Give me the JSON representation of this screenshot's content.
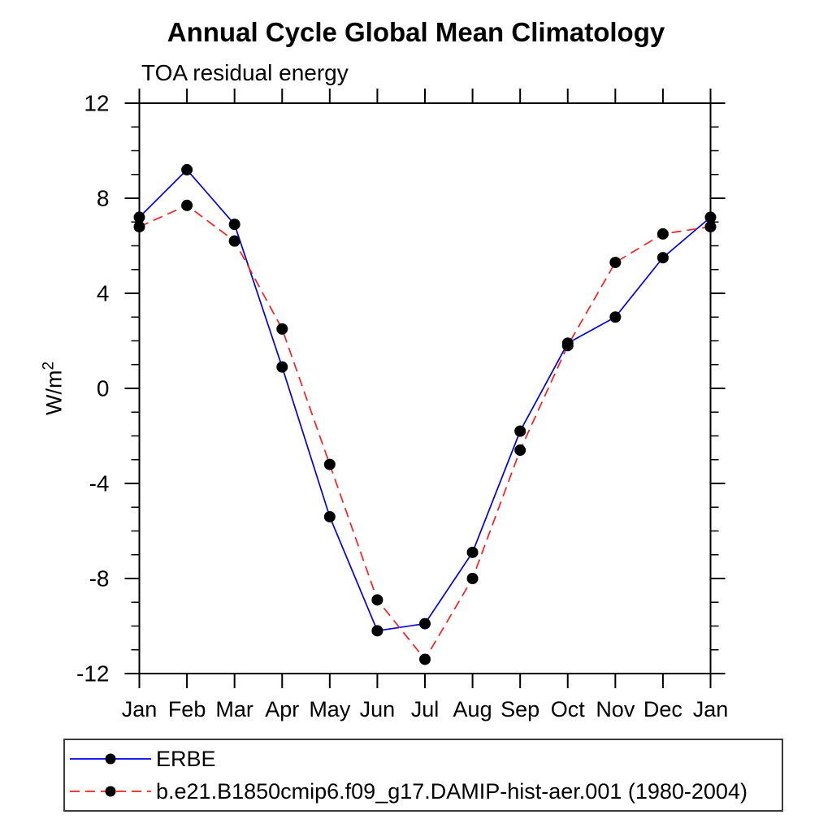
{
  "chart_data": {
    "type": "line",
    "title": "Annual Cycle Global Mean Climatology",
    "subtitle": "TOA residual energy",
    "ylabel_base": "W/m",
    "ylabel_exponent": "2",
    "categories": [
      "Jan",
      "Feb",
      "Mar",
      "Apr",
      "May",
      "Jun",
      "Jul",
      "Aug",
      "Sep",
      "Oct",
      "Nov",
      "Dec",
      "Jan"
    ],
    "ylim": [
      -12,
      12
    ],
    "ytick_major_step": 4,
    "ytick_minor_step": 1,
    "grid": false,
    "legend_position": "bottom-left-box",
    "series": [
      {
        "name": "ERBE",
        "color": "#0000e0",
        "line_style": "solid",
        "marker": "filled-circle",
        "marker_color": "#000000",
        "values": [
          7.2,
          9.2,
          6.9,
          0.9,
          -5.4,
          -10.2,
          -9.9,
          -6.9,
          -1.8,
          1.9,
          3.0,
          5.5,
          7.2
        ]
      },
      {
        "name": "b.e21.B1850cmip6.f09_g17.DAMIP-hist-aer.001 (1980-2004)",
        "color": "#fa1e1e",
        "line_style": "dashed",
        "marker": "filled-circle",
        "marker_color": "#000000",
        "values": [
          6.8,
          7.7,
          6.2,
          2.5,
          -3.2,
          -8.9,
          -11.4,
          -8.0,
          -2.6,
          1.8,
          5.3,
          6.5,
          6.8
        ]
      }
    ]
  },
  "colors": {
    "axis": "#000000",
    "background": "#ffffff",
    "legend_border": "#3c3c3c",
    "text": "#000000"
  }
}
